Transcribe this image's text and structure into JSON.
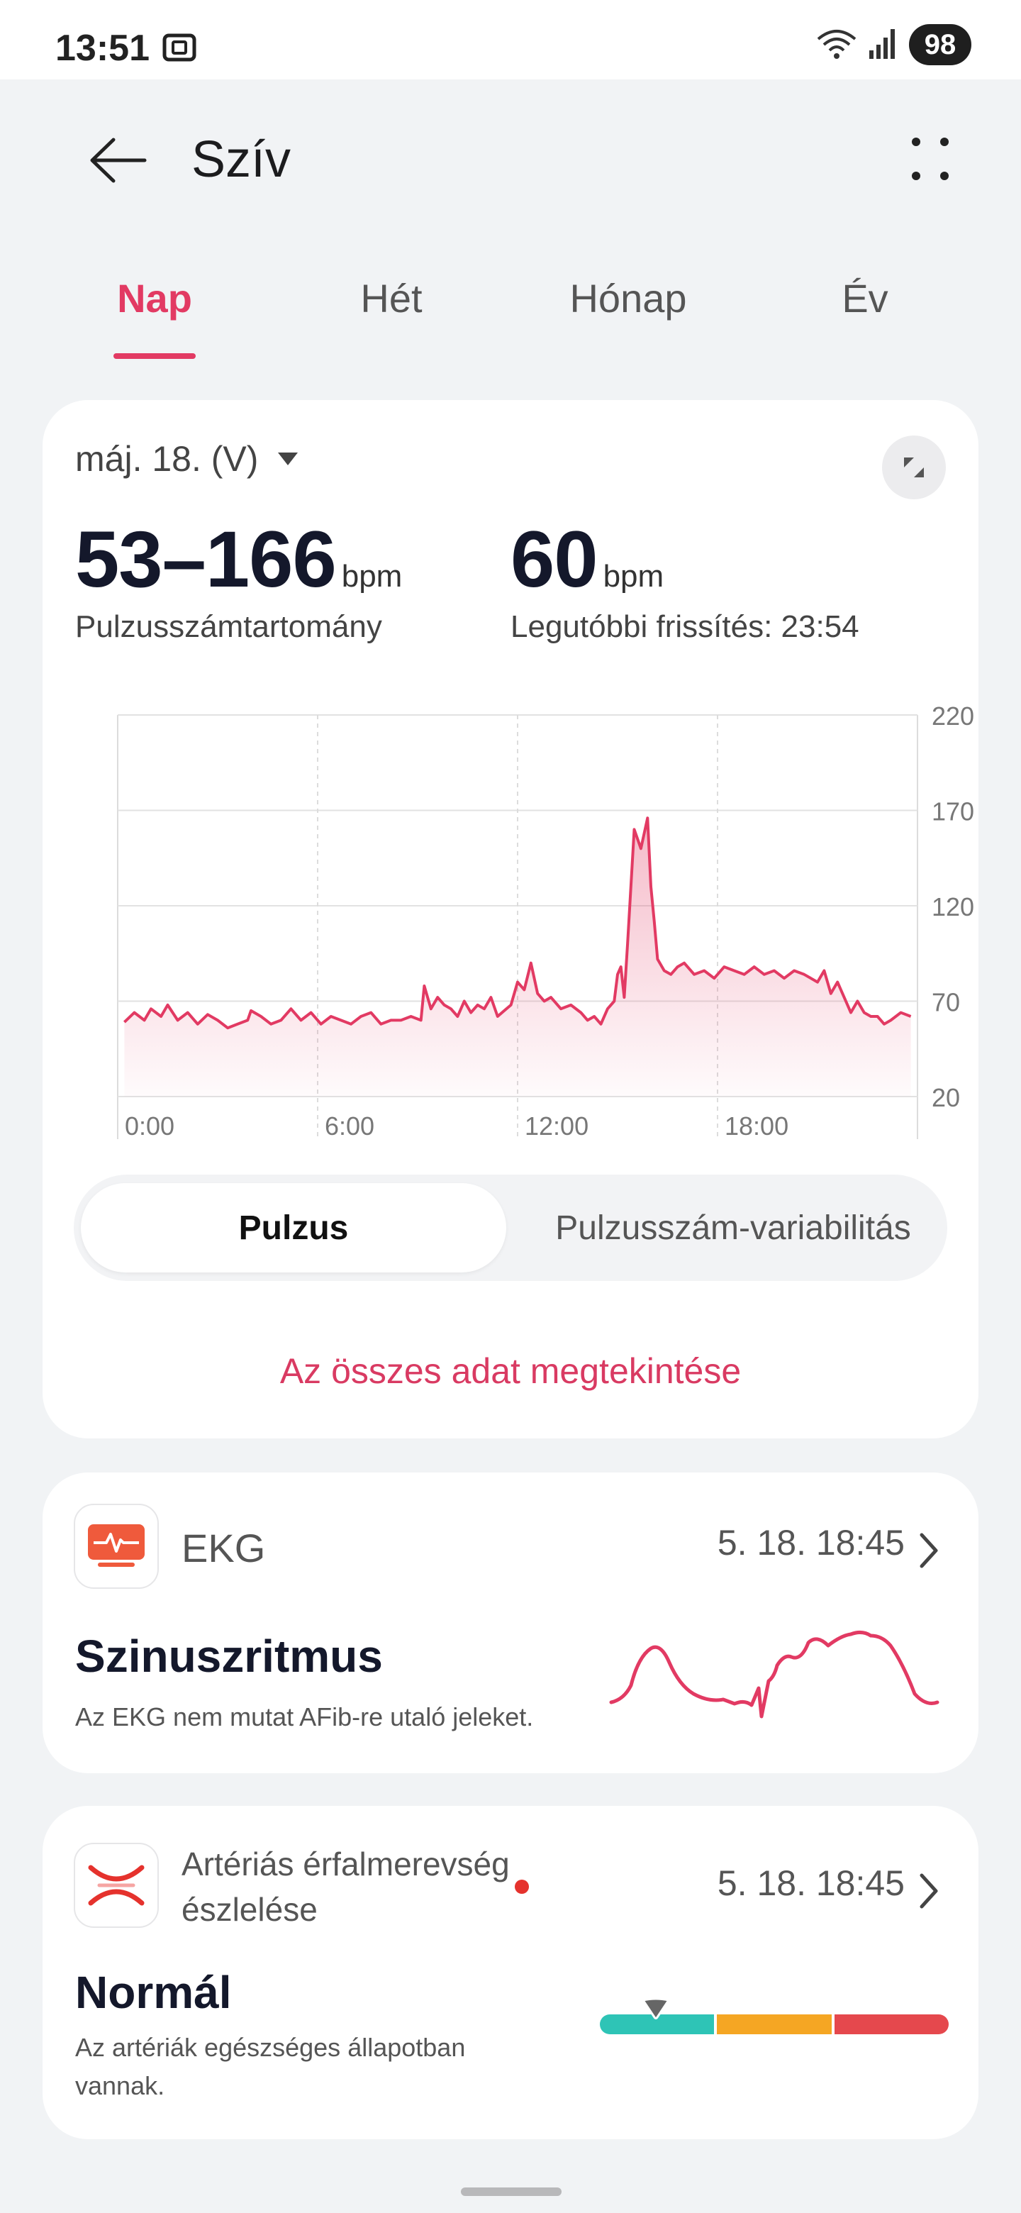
{
  "status_bar": {
    "time": "13:51",
    "battery": "98"
  },
  "header": {
    "title": "Szív"
  },
  "tabs": [
    {
      "label": "Nap",
      "active": true
    },
    {
      "label": "Hét",
      "active": false
    },
    {
      "label": "Hónap",
      "active": false
    },
    {
      "label": "Év",
      "active": false
    }
  ],
  "heart_card": {
    "date": "máj. 18. (V)",
    "range": {
      "value": "53–166",
      "unit": "bpm",
      "label": "Pulzusszámtartomány"
    },
    "latest": {
      "value": "60",
      "unit": "bpm",
      "label": "Legutóbbi frissítés: 23:54"
    },
    "toggle": {
      "active": "Pulzus",
      "inactive": "Pulzusszám-variabilitás"
    },
    "view_all": "Az összes adat megtekintése"
  },
  "chart_data": {
    "type": "area",
    "x_tick_labels": [
      "0:00",
      "6:00",
      "12:00",
      "18:00"
    ],
    "y_tick_labels": [
      "220",
      "170",
      "120",
      "70",
      "20"
    ],
    "ylim": [
      20,
      220
    ],
    "xlim": [
      0,
      24
    ],
    "grid": true,
    "series": [
      {
        "color": "#e23a63",
        "x": [
          0.2,
          0.5,
          0.8,
          1.0,
          1.3,
          1.5,
          1.8,
          2.1,
          2.4,
          2.7,
          3.0,
          3.3,
          3.6,
          3.9,
          4.0,
          4.3,
          4.6,
          4.9,
          5.2,
          5.5,
          5.8,
          6.1,
          6.4,
          6.7,
          7.0,
          7.3,
          7.6,
          7.9,
          8.2,
          8.5,
          8.8,
          9.1,
          9.2,
          9.4,
          9.6,
          9.8,
          10.0,
          10.2,
          10.4,
          10.6,
          10.8,
          11.0,
          11.2,
          11.4,
          11.6,
          11.8,
          12.0,
          12.2,
          12.4,
          12.6,
          12.8,
          13.0,
          13.3,
          13.6,
          13.9,
          14.1,
          14.3,
          14.5,
          14.7,
          14.9,
          15.0,
          15.1,
          15.2,
          15.3,
          15.5,
          15.7,
          15.9,
          16.0,
          16.1,
          16.2,
          16.4,
          16.6,
          16.8,
          17.0,
          17.3,
          17.6,
          17.9,
          18.2,
          18.5,
          18.8,
          19.1,
          19.4,
          19.7,
          20.0,
          20.3,
          20.6,
          20.8,
          21.0,
          21.2,
          21.4,
          21.6,
          21.8,
          22.0,
          22.2,
          22.4,
          22.6,
          22.8,
          23.0,
          23.2,
          23.5,
          23.8
        ],
        "y": [
          59,
          64,
          60,
          66,
          62,
          68,
          60,
          64,
          58,
          63,
          60,
          56,
          58,
          60,
          65,
          62,
          58,
          60,
          66,
          60,
          64,
          58,
          62,
          60,
          58,
          62,
          64,
          58,
          60,
          60,
          62,
          60,
          78,
          66,
          72,
          68,
          66,
          62,
          70,
          64,
          68,
          66,
          72,
          62,
          65,
          68,
          80,
          76,
          90,
          74,
          70,
          72,
          66,
          68,
          64,
          60,
          62,
          58,
          66,
          70,
          84,
          88,
          72,
          100,
          160,
          150,
          166,
          130,
          112,
          92,
          86,
          84,
          88,
          90,
          84,
          86,
          82,
          88,
          86,
          84,
          88,
          84,
          86,
          82,
          86,
          84,
          82,
          80,
          86,
          74,
          80,
          72,
          64,
          70,
          64,
          62,
          62,
          58,
          60,
          64,
          62
        ]
      }
    ]
  },
  "ecg_card": {
    "title": "EKG",
    "date": "5. 18. 18:45",
    "status": "Szinuszritmus",
    "description": "Az EKG nem mutat AFib-re utaló jeleket."
  },
  "arterial_card": {
    "title": "Artériás érfalmerevség észlelése",
    "date": "5. 18. 18:45",
    "status": "Normál",
    "description": "Az artériák egészséges állapotban vannak.",
    "level_fraction": 0.16,
    "segment_colors": [
      "#2ec4b6",
      "#f5a623",
      "#e5484d"
    ]
  },
  "colors": {
    "accent": "#e23a63",
    "text_dark": "#14182b"
  }
}
